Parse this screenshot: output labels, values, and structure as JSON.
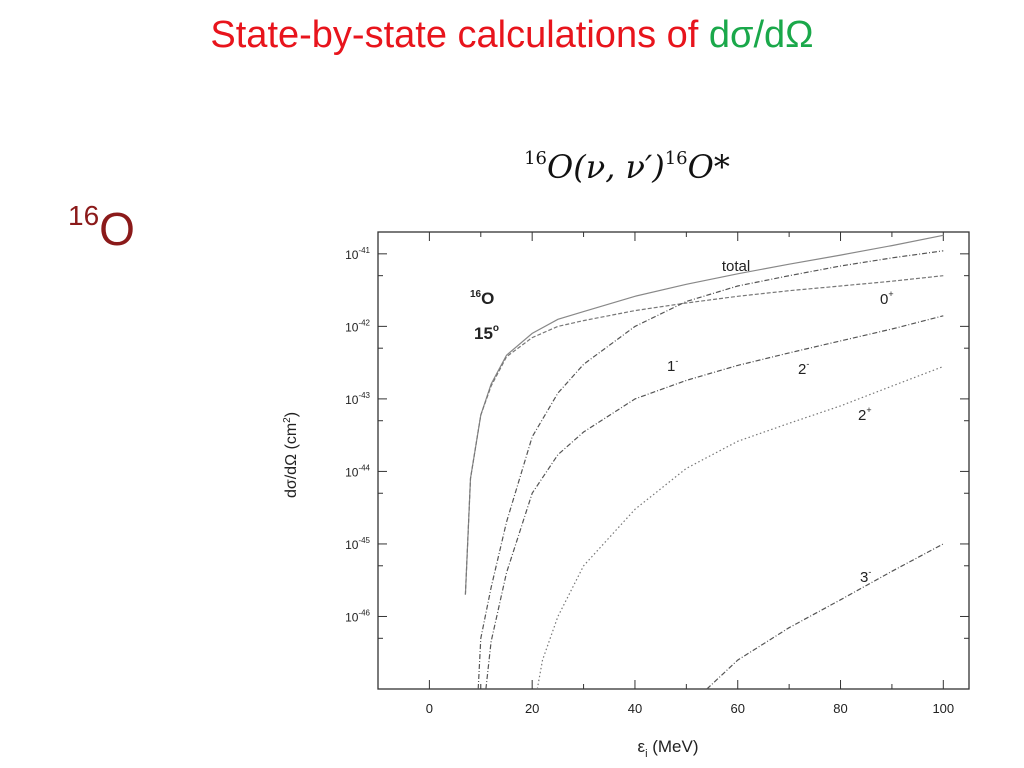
{
  "slide": {
    "title_main": "State-by-state calculations of ",
    "title_accent": "dσ/dΩ",
    "accent_color": "#1aa84a",
    "title_color": "#e8141c",
    "nucleus_mass": "16",
    "nucleus_symbol": "O",
    "nucleus_color": "#8b1a1a"
  },
  "reaction": {
    "mass_a": "16",
    "text_a": "O(ν, ν′)",
    "mass_b": "16",
    "text_b": "O*"
  },
  "chart_data": {
    "type": "line",
    "y_scale": "log",
    "xlim": [
      -10,
      105
    ],
    "ylim": [
      1e-47,
      2e-41
    ],
    "x_ticks": [
      "0",
      "20",
      "40",
      "60",
      "80",
      "100"
    ],
    "y_ticks": [
      {
        "mantissa": "10",
        "exponent": "-41"
      },
      {
        "mantissa": "10",
        "exponent": "-42"
      },
      {
        "mantissa": "10",
        "exponent": "-43"
      },
      {
        "mantissa": "10",
        "exponent": "-44"
      },
      {
        "mantissa": "10",
        "exponent": "-45"
      },
      {
        "mantissa": "10",
        "exponent": "-46"
      }
    ],
    "xlabel_main": "ε",
    "xlabel_sub": "i",
    "xlabel_rest": " (MeV)",
    "ylabel_main": "dσ/dΩ (cm",
    "ylabel_sup": "2",
    "ylabel_end": ")",
    "inset_mass": "16",
    "inset_symbol": "O",
    "inset_angle": "15",
    "inset_degree": "o",
    "grid": false,
    "series": [
      {
        "name": "total",
        "style": "solid",
        "x": [
          7,
          8,
          10,
          12,
          15,
          20,
          25,
          30,
          40,
          50,
          60,
          70,
          80,
          90,
          100
        ],
        "y": [
          2e-46,
          8e-45,
          6e-44,
          1.6e-43,
          4e-43,
          8e-43,
          1.25e-42,
          1.6e-42,
          2.6e-42,
          3.8e-42,
          5.3e-42,
          7.2e-42,
          9.6e-42,
          1.3e-41,
          1.8e-41
        ]
      },
      {
        "name": "0+",
        "style": "dashed",
        "x": [
          7,
          8,
          10,
          12,
          15,
          20,
          25,
          30,
          40,
          50,
          60,
          70,
          80,
          90,
          100
        ],
        "y": [
          2e-46,
          8e-45,
          6e-44,
          1.5e-43,
          3.8e-43,
          7e-43,
          1e-42,
          1.2e-42,
          1.65e-42,
          2.1e-42,
          2.6e-42,
          3.1e-42,
          3.6e-42,
          4.2e-42,
          5e-42
        ]
      },
      {
        "name": "1-",
        "style": "dashdot",
        "x": [
          9.5,
          10,
          12,
          15,
          20,
          25,
          30,
          40,
          50,
          60,
          70,
          80,
          90,
          100
        ],
        "y": [
          1e-47,
          5e-47,
          2.5e-46,
          2e-45,
          3e-44,
          1.2e-43,
          3e-43,
          1e-42,
          2.2e-42,
          3.6e-42,
          5e-42,
          6.8e-42,
          8.8e-42,
          1.1e-41
        ]
      },
      {
        "name": "2-",
        "style": "dashdot",
        "x": [
          11,
          12,
          15,
          20,
          25,
          30,
          40,
          50,
          60,
          70,
          80,
          90,
          100
        ],
        "y": [
          1e-47,
          4.5e-47,
          4e-46,
          5e-45,
          1.7e-44,
          3.5e-44,
          1e-43,
          1.8e-43,
          2.9e-43,
          4.3e-43,
          6.3e-43,
          9.2e-43,
          1.4e-42
        ]
      },
      {
        "name": "2+",
        "style": "dotted",
        "x": [
          21,
          22,
          25,
          30,
          40,
          50,
          60,
          70,
          80,
          90,
          100
        ],
        "y": [
          1e-47,
          2.5e-47,
          1e-46,
          5e-46,
          3e-45,
          1.1e-44,
          2.6e-44,
          4.6e-44,
          8e-44,
          1.5e-43,
          2.8e-43
        ]
      },
      {
        "name": "3-",
        "style": "dashdot",
        "x": [
          54,
          60,
          70,
          80,
          90,
          100
        ],
        "y": [
          1e-47,
          2.5e-47,
          7e-47,
          1.7e-46,
          4.2e-46,
          1e-45
        ]
      }
    ]
  }
}
